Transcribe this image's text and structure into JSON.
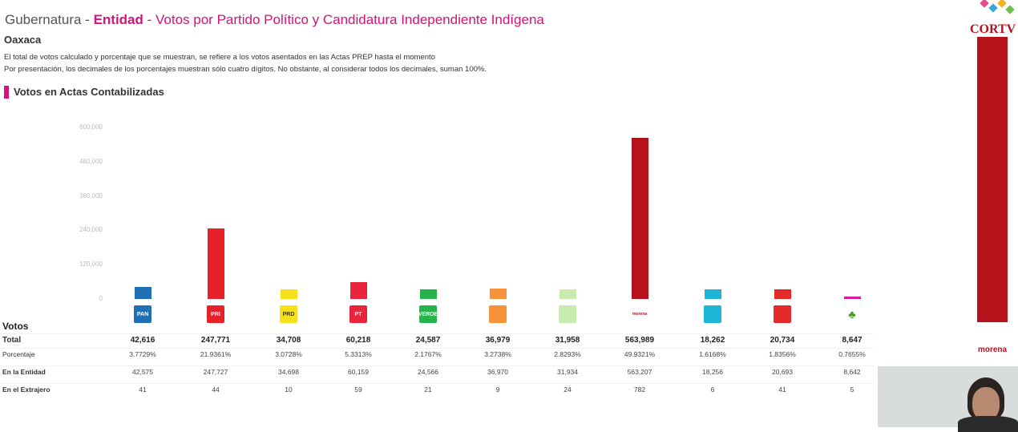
{
  "header": {
    "prefix": "Gubernatura - ",
    "entity": "Entidad",
    "sep": " - ",
    "title": "Votos por Partido Político y Candidatura Independiente Indígena"
  },
  "state": "Oaxaca",
  "notes": [
    "El total de votos calculado y porcentaje que se muestran, se refiere a los votos asentados en las Actas PREP hasta el momento",
    "Por presentación, los decimales de los porcentajes muestran sólo cuatro dígitos. No obstante, al considerar todos los decimales, suman 100%."
  ],
  "section_title": "Votos en Actas Contabilizadas",
  "broadcaster_logo": "CORTV",
  "side_panel": {
    "label": "morena",
    "color": "#b5121b"
  },
  "table": {
    "header": "Votos",
    "row_labels": [
      "Total",
      "Porcentaje",
      "En la Entidad",
      "En el Extrajero"
    ]
  },
  "chart_data": {
    "type": "bar",
    "ylim": [
      0,
      600000
    ],
    "yticks": [
      "0",
      "120,000",
      "240,000",
      "360,000",
      "480,000",
      "600,000"
    ],
    "ytick_values": [
      0,
      120000,
      240000,
      360000,
      480000,
      600000
    ],
    "categories": [
      {
        "icon": "pan-logo",
        "logo_text": "PAN",
        "color": "#1f6fb5"
      },
      {
        "icon": "pri-logo",
        "logo_text": "PRI",
        "color": "#e8202a"
      },
      {
        "icon": "prd-logo",
        "logo_text": "PRD",
        "color": "#f5e11a"
      },
      {
        "icon": "pt-logo",
        "logo_text": "PT",
        "color": "#e8253b"
      },
      {
        "icon": "verde-logo",
        "logo_text": "VERDE",
        "color": "#25b34a"
      },
      {
        "icon": "movimiento-ciudadano-logo",
        "logo_text": "",
        "color": "#f7923a"
      },
      {
        "icon": "unidad-popular-logo",
        "logo_text": "",
        "color": "#c8ebb0"
      },
      {
        "icon": "morena-logo",
        "logo_text": "morena",
        "color": "#b5121b"
      },
      {
        "icon": "nueva-alianza-logo",
        "logo_text": "",
        "color": "#1fb5d6"
      },
      {
        "icon": "fuerza-mexico-logo",
        "logo_text": "",
        "color": "#e52a2a"
      },
      {
        "icon": "independiente-indigena-logo",
        "logo_text": "",
        "color": "#d81b9b"
      }
    ],
    "values": [
      42616,
      247771,
      34708,
      60218,
      24587,
      36979,
      31958,
      563989,
      18262,
      20734,
      8647
    ],
    "total": [
      "42,616",
      "247,771",
      "34,708",
      "60,218",
      "24,587",
      "36,979",
      "31,958",
      "563,989",
      "18,262",
      "20,734",
      "8,647"
    ],
    "percentage": [
      "3.7729%",
      "21.9361%",
      "3.0728%",
      "5.3313%",
      "2.1767%",
      "3.2738%",
      "2.8293%",
      "49.9321%",
      "1.6168%",
      "1.8356%",
      "0.7655%"
    ],
    "in_entity": [
      "42,575",
      "247,727",
      "34,698",
      "60,159",
      "24,566",
      "36,970",
      "31,934",
      "563,207",
      "18,256",
      "20,693",
      "8,642"
    ],
    "abroad": [
      "41",
      "44",
      "10",
      "59",
      "21",
      "9",
      "24",
      "782",
      "6",
      "41",
      "5"
    ]
  }
}
